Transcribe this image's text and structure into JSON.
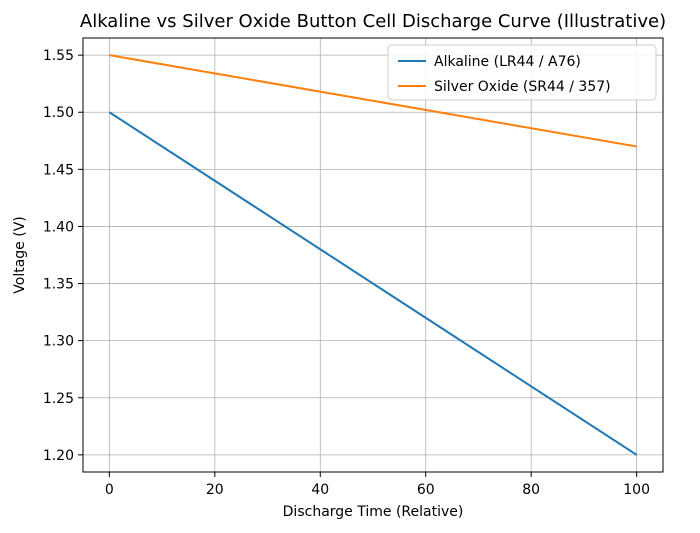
{
  "chart_data": {
    "type": "line",
    "title": "Alkaline vs Silver Oxide Button Cell Discharge Curve (Illustrative)",
    "xlabel": "Discharge Time (Relative)",
    "ylabel": "Voltage (V)",
    "xlim": [
      -5,
      105
    ],
    "ylim": [
      1.185,
      1.565
    ],
    "xticks": [
      0,
      20,
      40,
      60,
      80,
      100
    ],
    "xtick_labels": [
      "0",
      "20",
      "40",
      "60",
      "80",
      "100"
    ],
    "yticks": [
      1.2,
      1.25,
      1.3,
      1.35,
      1.4,
      1.45,
      1.5,
      1.55
    ],
    "ytick_labels": [
      "1.20",
      "1.25",
      "1.30",
      "1.35",
      "1.40",
      "1.45",
      "1.50",
      "1.55"
    ],
    "grid": true,
    "legend_position": "top-right",
    "series": [
      {
        "name": "Alkaline (LR44 / A76)",
        "color": "#1f77b4",
        "x": [
          0,
          100
        ],
        "y": [
          1.5,
          1.2
        ]
      },
      {
        "name": "Silver Oxide (SR44 / 357)",
        "color": "#ff7f0e",
        "x": [
          0,
          100
        ],
        "y": [
          1.55,
          1.47
        ]
      }
    ]
  }
}
